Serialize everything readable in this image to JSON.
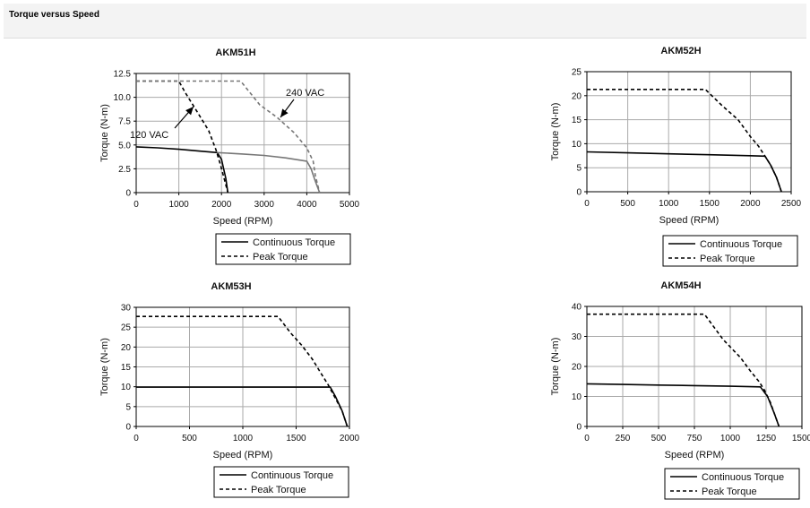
{
  "header": {
    "title": "Torque versus Speed"
  },
  "chart_data": [
    {
      "type": "line",
      "title": "AKM51H",
      "xlabel": "Speed (RPM)",
      "ylabel": "Torque (N-m)",
      "xlim": [
        0,
        5000
      ],
      "ylim": [
        0,
        12.5
      ],
      "xticks": [
        "0",
        "1000",
        "2000",
        "3000",
        "4000",
        "5000"
      ],
      "yticks": [
        "0",
        "2.5",
        "5.0",
        "7.5",
        "10.0",
        "12.5"
      ],
      "grid": true,
      "legend": {
        "placement": "below",
        "entries": [
          "Continuous Torque",
          "Peak Torque"
        ]
      },
      "annotations": [
        {
          "text": "240 VAC",
          "points_to": "peak torque, 240 VAC curve"
        },
        {
          "text": "120 VAC",
          "points_to": "peak torque, 120 VAC curve"
        }
      ],
      "series": [
        {
          "name": "Continuous Torque",
          "style": "solid",
          "color": "#000000",
          "points": [
            [
              0,
              4.8
            ],
            [
              500,
              4.7
            ],
            [
              1000,
              4.55
            ],
            [
              1500,
              4.35
            ],
            [
              1900,
              4.2
            ],
            [
              2000,
              3.5
            ],
            [
              2100,
              1.5
            ],
            [
              2150,
              0
            ]
          ]
        },
        {
          "name": "Peak Torque",
          "style": "dashed",
          "color": "#000000",
          "points": [
            [
              0,
              11.7
            ],
            [
              1000,
              11.7
            ],
            [
              1150,
              10.5
            ],
            [
              1400,
              8.7
            ],
            [
              1700,
              6.5
            ],
            [
              1870,
              4.5
            ],
            [
              1970,
              3.0
            ],
            [
              2060,
              1.5
            ],
            [
              2150,
              0
            ]
          ]
        },
        {
          "style": "solid",
          "color": "#777777",
          "points": [
            [
              1900,
              4.2
            ],
            [
              2500,
              4.05
            ],
            [
              3000,
              3.9
            ],
            [
              3500,
              3.65
            ],
            [
              4000,
              3.3
            ],
            [
              4100,
              2.5
            ],
            [
              4200,
              1.2
            ],
            [
              4300,
              0
            ]
          ]
        },
        {
          "style": "dashed",
          "color": "#777777",
          "points": [
            [
              0,
              11.7
            ],
            [
              2450,
              11.7
            ],
            [
              2900,
              9.2
            ],
            [
              3300,
              7.9
            ],
            [
              3700,
              6.3
            ],
            [
              4000,
              4.7
            ],
            [
              4150,
              3.3
            ],
            [
              4200,
              1.8
            ],
            [
              4300,
              0
            ]
          ]
        }
      ]
    },
    {
      "type": "line",
      "title": "AKM52H",
      "xlabel": "Speed (RPM)",
      "ylabel": "Torque (N-m)",
      "xlim": [
        0,
        2500
      ],
      "ylim": [
        0,
        25
      ],
      "xticks": [
        "0",
        "500",
        "1000",
        "1500",
        "2000",
        "2500"
      ],
      "yticks": [
        "0",
        "5",
        "10",
        "15",
        "20",
        "25"
      ],
      "grid": true,
      "legend": {
        "placement": "below",
        "entries": [
          "Continuous Torque",
          "Peak Torque"
        ]
      },
      "series": [
        {
          "name": "Continuous Torque",
          "style": "solid",
          "color": "#000000",
          "points": [
            [
              0,
              8.3
            ],
            [
              500,
              8.1
            ],
            [
              1000,
              7.9
            ],
            [
              1500,
              7.7
            ],
            [
              2000,
              7.5
            ],
            [
              2180,
              7.4
            ],
            [
              2250,
              5.5
            ],
            [
              2320,
              3.0
            ],
            [
              2380,
              0
            ]
          ]
        },
        {
          "name": "Peak Torque",
          "style": "dashed",
          "color": "#000000",
          "points": [
            [
              0,
              21.3
            ],
            [
              1450,
              21.3
            ],
            [
              1650,
              18.0
            ],
            [
              1850,
              15.0
            ],
            [
              2000,
              11.5
            ],
            [
              2100,
              9.5
            ],
            [
              2180,
              7.4
            ],
            [
              2250,
              5.5
            ],
            [
              2320,
              3.0
            ],
            [
              2380,
              0
            ]
          ]
        }
      ]
    },
    {
      "type": "line",
      "title": "AKM53H",
      "xlabel": "Speed (RPM)",
      "ylabel": "Torque (N-m)",
      "xlim": [
        0,
        2000
      ],
      "ylim": [
        0,
        30
      ],
      "xticks": [
        "0",
        "500",
        "1000",
        "1500",
        "2000"
      ],
      "yticks": [
        "0",
        "5",
        "10",
        "15",
        "20",
        "25",
        "30"
      ],
      "grid": true,
      "legend": {
        "placement": "below",
        "entries": [
          "Continuous Torque",
          "Peak Torque"
        ]
      },
      "series": [
        {
          "name": "Continuous Torque",
          "style": "solid",
          "color": "#000000",
          "points": [
            [
              0,
              9.9
            ],
            [
              500,
              9.9
            ],
            [
              1000,
              9.9
            ],
            [
              1500,
              9.9
            ],
            [
              1820,
              9.9
            ],
            [
              1870,
              7.5
            ],
            [
              1930,
              4.0
            ],
            [
              1980,
              0
            ]
          ]
        },
        {
          "name": "Peak Torque",
          "style": "dashed",
          "color": "#000000",
          "points": [
            [
              0,
              27.7
            ],
            [
              1330,
              27.7
            ],
            [
              1450,
              23.5
            ],
            [
              1550,
              20.5
            ],
            [
              1650,
              17.0
            ],
            [
              1730,
              13.5
            ],
            [
              1800,
              10.5
            ],
            [
              1850,
              8.0
            ],
            [
              1930,
              4.0
            ],
            [
              1980,
              0
            ]
          ]
        }
      ]
    },
    {
      "type": "line",
      "title": "AKM54H",
      "xlabel": "Speed (RPM)",
      "ylabel": "Torque (N-m)",
      "xlim": [
        0,
        1500
      ],
      "ylim": [
        0,
        40
      ],
      "xticks": [
        "0",
        "250",
        "500",
        "750",
        "1000",
        "1250",
        "1500"
      ],
      "yticks": [
        "0",
        "10",
        "20",
        "30",
        "40"
      ],
      "grid": true,
      "legend": {
        "placement": "below",
        "entries": [
          "Continuous Torque",
          "Peak Torque"
        ]
      },
      "series": [
        {
          "name": "Continuous Torque",
          "style": "solid",
          "color": "#000000",
          "points": [
            [
              0,
              14.2
            ],
            [
              250,
              14.0
            ],
            [
              500,
              13.8
            ],
            [
              750,
              13.6
            ],
            [
              1000,
              13.4
            ],
            [
              1210,
              13.2
            ],
            [
              1260,
              10.0
            ],
            [
              1310,
              4.0
            ],
            [
              1340,
              0
            ]
          ]
        },
        {
          "name": "Peak Torque",
          "style": "dashed",
          "color": "#000000",
          "points": [
            [
              0,
              37.4
            ],
            [
              820,
              37.4
            ],
            [
              950,
              29.0
            ],
            [
              1070,
              23.0
            ],
            [
              1140,
              18.5
            ],
            [
              1200,
              15.0
            ],
            [
              1240,
              12.0
            ],
            [
              1280,
              8.0
            ],
            [
              1310,
              4.0
            ],
            [
              1340,
              0
            ]
          ]
        }
      ]
    }
  ]
}
